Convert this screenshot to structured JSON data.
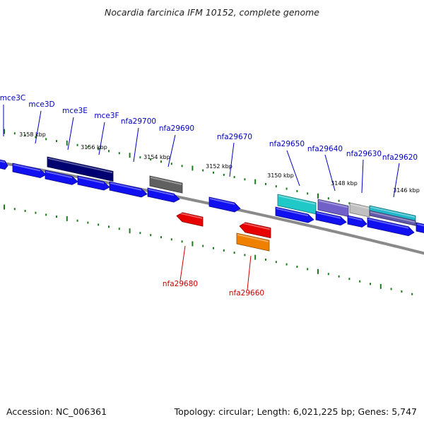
{
  "title": "Nocardia farcinica IFM 10152, complete genome",
  "footer": {
    "accession": "Accession: NC_006361",
    "summary": "Topology: circular; Length: 6,021,225 bp; Genes: 5,747"
  },
  "colors": {
    "backbone": "#8a8a8a",
    "tick": "#1e7a1e",
    "label_forward": "#0000c0",
    "label_reverse": "#cc0000",
    "scale_label": "#000000"
  },
  "scale_labels": [
    {
      "text": "3158 kbp",
      "kbp": 3158
    },
    {
      "text": "3156 kbp",
      "kbp": 3156
    },
    {
      "text": "3154 kbp",
      "kbp": 3154
    },
    {
      "text": "3152 kbp",
      "kbp": 3152
    },
    {
      "text": "3150 kbp",
      "kbp": 3150
    },
    {
      "text": "3148 kbp",
      "kbp": 3148
    },
    {
      "text": "3146 kbp",
      "kbp": 3146
    }
  ],
  "gene_labels": [
    {
      "name": "mce3C",
      "strand": "forward"
    },
    {
      "name": "mce3D",
      "strand": "forward"
    },
    {
      "name": "mce3E",
      "strand": "forward"
    },
    {
      "name": "mce3F",
      "strand": "forward"
    },
    {
      "name": "nfa29700",
      "strand": "forward"
    },
    {
      "name": "nfa29690",
      "strand": "forward"
    },
    {
      "name": "nfa29670",
      "strand": "forward"
    },
    {
      "name": "nfa29650",
      "strand": "forward"
    },
    {
      "name": "nfa29640",
      "strand": "forward"
    },
    {
      "name": "nfa29630",
      "strand": "forward"
    },
    {
      "name": "nfa29620",
      "strand": "forward"
    },
    {
      "name": "nfa29680",
      "strand": "reverse"
    },
    {
      "name": "nfa29660",
      "strand": "reverse"
    }
  ],
  "features": [
    {
      "strand": "forward",
      "color": "#1010f0",
      "dir": "right"
    },
    {
      "strand": "forward",
      "color": "#1010f0",
      "dir": "right"
    },
    {
      "strand": "forward",
      "color": "#000070",
      "dir": "none"
    },
    {
      "strand": "forward",
      "color": "#1010f0",
      "dir": "right"
    },
    {
      "strand": "forward",
      "color": "#1010f0",
      "dir": "right"
    },
    {
      "strand": "forward",
      "color": "#1010f0",
      "dir": "right"
    },
    {
      "strand": "forward",
      "color": "#606060",
      "dir": "none"
    },
    {
      "strand": "forward",
      "color": "#1010f0",
      "dir": "right"
    },
    {
      "strand": "forward",
      "color": "#1010f0",
      "dir": "right"
    },
    {
      "strand": "forward",
      "color": "#20c8c8",
      "dir": "none"
    },
    {
      "strand": "forward",
      "color": "#1010f0",
      "dir": "right"
    },
    {
      "strand": "forward",
      "color": "#7060c8",
      "dir": "none"
    },
    {
      "strand": "forward",
      "color": "#1010f0",
      "dir": "right"
    },
    {
      "strand": "forward",
      "color": "#c0c0c0",
      "dir": "none"
    },
    {
      "strand": "forward",
      "color": "#1010f0",
      "dir": "right"
    },
    {
      "strand": "forward",
      "color": "#20b8c8",
      "dir": "none"
    },
    {
      "strand": "forward",
      "color": "#6058a8",
      "dir": "none"
    },
    {
      "strand": "forward",
      "color": "#1010f0",
      "dir": "right"
    },
    {
      "strand": "forward",
      "color": "#1010f0",
      "dir": "right"
    },
    {
      "strand": "reverse",
      "color": "#e80000",
      "dir": "left"
    },
    {
      "strand": "reverse",
      "color": "#e80000",
      "dir": "left"
    },
    {
      "strand": "reverse",
      "color": "#f08000",
      "dir": "none"
    }
  ]
}
